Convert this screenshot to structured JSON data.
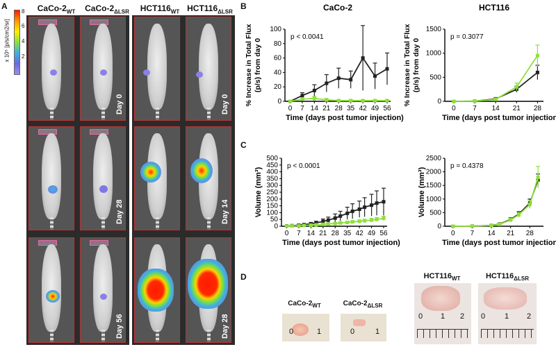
{
  "panel_labels": {
    "a": "A",
    "b": "B",
    "c": "C",
    "d": "D"
  },
  "colorbar": {
    "title": "x 10⁵ [p/s/cm2/sr]",
    "ticks": [
      "8",
      "6",
      "4",
      "2"
    ],
    "min_value": 0,
    "max_value": 8
  },
  "imaging": {
    "group_titles": [
      {
        "base": "CaCo-2",
        "sub": "WT"
      },
      {
        "base": "CaCo-2",
        "sub": "ΔLSR"
      },
      {
        "base": "HCT116",
        "sub": "WT"
      },
      {
        "base": "HCT116",
        "sub": "ΔLSR"
      }
    ],
    "day_labels_left": [
      "Day 0",
      "Day 28",
      "Day 56"
    ],
    "day_labels_right": [
      "Day 0",
      "Day 14",
      "Day 28"
    ]
  },
  "colors": {
    "wt": "#222222",
    "lsr": "#8ee03a",
    "frame": "#bb3333"
  },
  "chart_data": [
    {
      "id": "B-CaCo-2",
      "type": "line",
      "title": "CaCo-2",
      "xlabel": "Time (days post tumor injection)",
      "ylabel_line1": "% Increase in Total Flux",
      "ylabel_line2": "(p/s) from day 0",
      "annotation": "p < 0.0041",
      "x_ticks": [
        "0",
        "7",
        "14",
        "21",
        "28",
        "35",
        "42",
        "49",
        "56"
      ],
      "y_ticks": [
        "0",
        "20",
        "40",
        "60",
        "80",
        "100"
      ],
      "xlim": [
        -3,
        58
      ],
      "ylim": [
        0,
        100
      ],
      "series": [
        {
          "color": "#222222",
          "x": [
            0,
            7,
            14,
            21,
            28,
            35,
            42,
            49,
            56
          ],
          "y": [
            0,
            8,
            15,
            25,
            32,
            30,
            60,
            35,
            45
          ],
          "err": [
            1,
            4,
            8,
            12,
            14,
            12,
            45,
            18,
            22
          ]
        },
        {
          "color": "#8ee03a",
          "x": [
            0,
            7,
            14,
            21,
            28,
            35,
            42,
            49,
            56
          ],
          "y": [
            0,
            3,
            4,
            2,
            1,
            1,
            1,
            1,
            1
          ],
          "err": [
            1,
            2,
            3,
            2,
            1,
            1,
            1,
            1,
            1
          ]
        }
      ]
    },
    {
      "id": "B-HCT116",
      "type": "line",
      "title": "HCT116",
      "xlabel": "Time (days post tumor injection)",
      "ylabel_line1": "% Increase in Total Flux",
      "ylabel_line2": "(p/s) from day 0",
      "annotation": "p = 0.3077",
      "x_ticks": [
        "0",
        "7",
        "14",
        "21",
        "28"
      ],
      "y_ticks": [
        "0",
        "500",
        "1000",
        "1500"
      ],
      "xlim": [
        -3,
        30
      ],
      "ylim": [
        0,
        1500
      ],
      "series": [
        {
          "color": "#222222",
          "x": [
            0,
            7,
            14,
            21,
            28
          ],
          "y": [
            0,
            5,
            50,
            250,
            600
          ],
          "err": [
            5,
            10,
            30,
            60,
            150
          ]
        },
        {
          "color": "#8ee03a",
          "x": [
            0,
            7,
            14,
            21,
            28
          ],
          "y": [
            0,
            5,
            40,
            300,
            950
          ],
          "err": [
            5,
            10,
            30,
            80,
            220
          ]
        }
      ]
    },
    {
      "id": "C-CaCo-2",
      "type": "line",
      "title": "",
      "xlabel": "Time (days post tumor injection)",
      "ylabel": "Volume (mm³)",
      "annotation": "p < 0.0001",
      "x_ticks": [
        "0",
        "7",
        "14",
        "21",
        "28",
        "35",
        "42",
        "49",
        "56"
      ],
      "y_ticks": [
        "0",
        "50",
        "100",
        "150",
        "200",
        "250",
        "300",
        "350",
        "400",
        "450",
        "500"
      ],
      "xlim": [
        -3,
        58
      ],
      "ylim": [
        0,
        500
      ],
      "series": [
        {
          "color": "#222222",
          "x": [
            0,
            3,
            7,
            10,
            14,
            17,
            21,
            24,
            28,
            31,
            35,
            38,
            42,
            45,
            49,
            52,
            56
          ],
          "y": [
            2,
            4,
            8,
            12,
            18,
            25,
            35,
            45,
            60,
            75,
            95,
            110,
            125,
            140,
            155,
            170,
            180
          ],
          "err": [
            1,
            2,
            4,
            6,
            10,
            12,
            18,
            22,
            30,
            35,
            45,
            55,
            60,
            70,
            80,
            90,
            100
          ]
        },
        {
          "color": "#8ee03a",
          "x": [
            0,
            3,
            7,
            10,
            14,
            17,
            21,
            24,
            28,
            31,
            35,
            38,
            42,
            45,
            49,
            52,
            56
          ],
          "y": [
            1,
            2,
            4,
            6,
            8,
            10,
            14,
            17,
            20,
            24,
            28,
            32,
            36,
            40,
            45,
            50,
            58
          ],
          "err": [
            1,
            1,
            2,
            3,
            3,
            4,
            5,
            6,
            7,
            8,
            9,
            10,
            11,
            12,
            13,
            14,
            15
          ]
        }
      ]
    },
    {
      "id": "C-HCT116",
      "type": "line",
      "title": "",
      "xlabel": "Time (days post tumor injection)",
      "ylabel": "Volume (mm³)",
      "annotation": "p = 0.4378",
      "x_ticks": [
        "0",
        "7",
        "14",
        "21",
        "28"
      ],
      "y_ticks": [
        "0",
        "500",
        "1000",
        "1500",
        "2000",
        "2500"
      ],
      "xlim": [
        -3,
        33
      ],
      "ylim": [
        0,
        2500
      ],
      "series": [
        {
          "color": "#222222",
          "x": [
            0,
            7,
            14,
            17,
            21,
            24,
            28,
            31
          ],
          "y": [
            0,
            5,
            30,
            80,
            250,
            450,
            850,
            1700
          ],
          "err": [
            5,
            10,
            20,
            40,
            60,
            90,
            150,
            220
          ]
        },
        {
          "color": "#8ee03a",
          "x": [
            0,
            7,
            14,
            17,
            21,
            24,
            28,
            31
          ],
          "y": [
            0,
            5,
            25,
            70,
            230,
            420,
            800,
            1800
          ],
          "err": [
            5,
            10,
            20,
            40,
            60,
            90,
            150,
            400
          ]
        }
      ]
    }
  ],
  "panel_d": {
    "items": [
      {
        "base": "CaCo-2",
        "sub": "WT",
        "ruler_nums": [
          "0",
          "1"
        ]
      },
      {
        "base": "CaCo-2",
        "sub": "ΔLSR",
        "ruler_nums": [
          "0",
          "1"
        ]
      },
      {
        "base": "HCT116",
        "sub": "WT",
        "ruler_nums": [
          "0",
          "1",
          "2"
        ]
      },
      {
        "base": "HCT116",
        "sub": "ΔLSR",
        "ruler_nums": [
          "0",
          "1",
          "2"
        ]
      }
    ]
  }
}
